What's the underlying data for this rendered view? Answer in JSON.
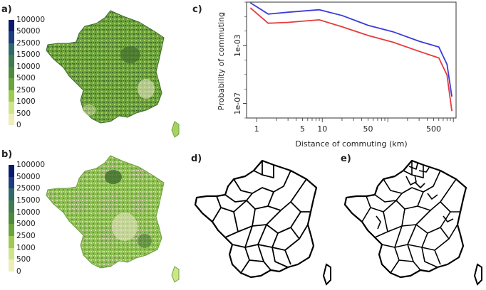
{
  "panels": {
    "a": {
      "label": "a)"
    },
    "b": {
      "label": "b)"
    },
    "c": {
      "label": "c)"
    },
    "d": {
      "label": "d)"
    },
    "e": {
      "label": "e)"
    }
  },
  "legend": {
    "ticks": [
      "100000",
      "50000",
      "25000",
      "15000",
      "10000",
      "5000",
      "2500",
      "1000",
      "500",
      "0"
    ],
    "colors": [
      "#0b1b6b",
      "#1d3d80",
      "#2e6a6a",
      "#3f7c4e",
      "#4e8a3c",
      "#6aa43c",
      "#9dcb4f",
      "#cfe58a",
      "#efeeb8",
      "#ffffff"
    ]
  },
  "map_colors": {
    "dark_green": "#3e6e2c",
    "mid_green": "#6fa33e",
    "light_green": "#a9d063",
    "pale": "#e8e5c4",
    "boundary": "#000000"
  },
  "chart_data": {
    "type": "line",
    "title": "",
    "xlabel": "Distance of commuting (km)",
    "ylabel": "Probability of commuting",
    "x_scale": "log",
    "y_scale": "log",
    "xlim": [
      0.7,
      1100
    ],
    "ylim": [
      1e-08,
      1
    ],
    "x_ticks": [
      1,
      5,
      10,
      50,
      500
    ],
    "x_tick_labels": [
      "1",
      "5",
      "10",
      "50",
      "500"
    ],
    "y_ticks": [
      1e-07,
      0.001
    ],
    "y_tick_labels": [
      "1e-07",
      "1e-03"
    ],
    "series": [
      {
        "color": "#3b3bdc",
        "x": [
          0.8,
          1.5,
          3,
          9,
          20,
          50,
          120,
          300,
          600,
          800,
          950
        ],
        "y": [
          0.9,
          0.15,
          0.2,
          0.3,
          0.12,
          0.025,
          0.009,
          0.002,
          0.0008,
          5e-05,
          3e-07
        ]
      },
      {
        "color": "#e53b3b",
        "x": [
          0.8,
          1.5,
          3,
          9,
          20,
          50,
          120,
          300,
          600,
          800,
          950
        ],
        "y": [
          0.4,
          0.035,
          0.04,
          0.06,
          0.02,
          0.005,
          0.0017,
          0.0004,
          0.00014,
          9e-06,
          3e-08
        ]
      }
    ]
  }
}
